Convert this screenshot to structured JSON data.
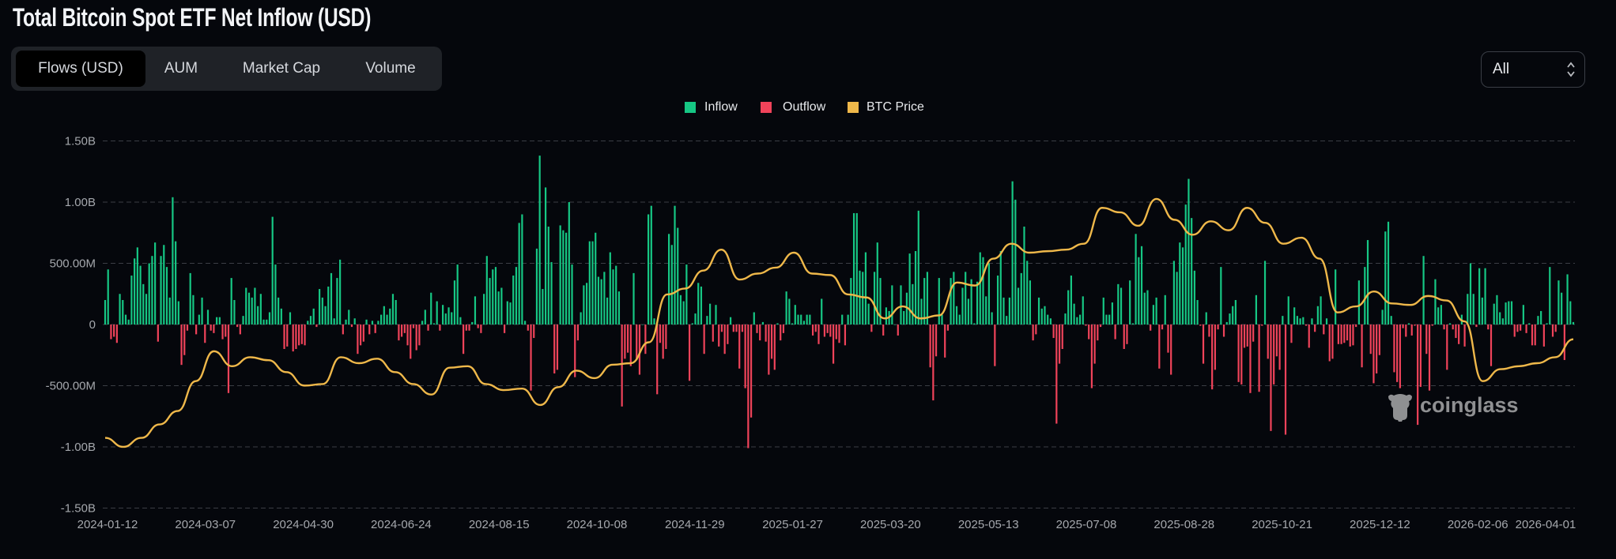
{
  "header": {
    "title": "Total Bitcoin Spot ETF Net Inflow (USD)"
  },
  "tabs": [
    {
      "label": "Flows (USD)",
      "active": true
    },
    {
      "label": "AUM",
      "active": false
    },
    {
      "label": "Market Cap",
      "active": false
    },
    {
      "label": "Volume",
      "active": false
    }
  ],
  "range_select": {
    "value": "All"
  },
  "watermark": "coinglass",
  "colors": {
    "inflow": "#16c784",
    "outflow": "#f0435a",
    "price": "#efb84a",
    "background": "#05070c"
  },
  "chart_data": {
    "type": "bar",
    "title": "Total Bitcoin Spot ETF Net Inflow (USD)",
    "legend": [
      {
        "name": "Inflow",
        "color": "#16c784"
      },
      {
        "name": "Outflow",
        "color": "#f0435a"
      },
      {
        "name": "BTC Price",
        "color": "#efb84a"
      }
    ],
    "legend_position": "top-center",
    "y_ticks": [
      "1.50B",
      "1.00B",
      "500.00M",
      "0",
      "-500.00M",
      "-1.00B",
      "-1.50B"
    ],
    "y_tick_values": [
      1500,
      1000,
      500,
      0,
      -500,
      -1000,
      -1500
    ],
    "ylim": [
      -1500,
      1500
    ],
    "y_unit": "M USD",
    "x_ticks": [
      "2024-01-12",
      "2024-03-07",
      "2024-04-30",
      "2024-06-24",
      "2024-08-15",
      "2024-10-08",
      "2024-11-29",
      "2025-01-27",
      "2025-03-20",
      "2025-05-13",
      "2025-07-08",
      "2025-08-28",
      "2025-10-21",
      "2025-12-12",
      "2026-02-06",
      "2026-04-01"
    ],
    "grid": true,
    "net_flows_musd": [
      200,
      450,
      -120,
      -100,
      -150,
      250,
      200,
      80,
      40,
      400,
      540,
      630,
      480,
      330,
      250,
      500,
      560,
      670,
      -140,
      560,
      650,
      470,
      220,
      1040,
      680,
      190,
      -330,
      -250,
      -50,
      420,
      240,
      -80,
      80,
      220,
      -150,
      120,
      -50,
      -70,
      60,
      60,
      -120,
      -100,
      -560,
      380,
      200,
      -20,
      -80,
      70,
      300,
      260,
      220,
      300,
      150,
      250,
      40,
      40,
      100,
      880,
      490,
      220,
      130,
      -200,
      -180,
      100,
      -220,
      -200,
      -170,
      -160,
      -170,
      30,
      70,
      130,
      -20,
      290,
      220,
      150,
      310,
      420,
      50,
      380,
      530,
      -80,
      40,
      120,
      -20,
      50,
      -240,
      -170,
      -140,
      40,
      -80,
      30,
      -70,
      30,
      80,
      150,
      80,
      130,
      250,
      200,
      -130,
      -100,
      -70,
      -170,
      -280,
      -30,
      -210,
      -170,
      30,
      120,
      -50,
      260,
      10,
      190,
      -50,
      160,
      90,
      140,
      100,
      360,
      490,
      60,
      -240,
      -50,
      -50,
      20,
      230,
      -30,
      -70,
      250,
      560,
      380,
      450,
      470,
      270,
      300,
      -70,
      190,
      180,
      400,
      470,
      830,
      900,
      30,
      -50,
      -540,
      -110,
      620,
      1380,
      290,
      1120,
      800,
      510,
      -400,
      -370,
      810,
      770,
      750,
      1000,
      490,
      -430,
      -130,
      100,
      320,
      340,
      680,
      680,
      750,
      390,
      370,
      430,
      220,
      590,
      450,
      480,
      270,
      -670,
      -280,
      -230,
      -340,
      420,
      -290,
      -410,
      0,
      -240,
      900,
      970,
      50,
      -570,
      -150,
      -280,
      -200,
      740,
      650,
      970,
      790,
      240,
      190,
      490,
      -460,
      10,
      90,
      340,
      310,
      -240,
      70,
      170,
      -140,
      160,
      -180,
      -60,
      -240,
      -160,
      60,
      -60,
      -60,
      -360,
      -60,
      -520,
      -1010,
      -760,
      100,
      -70,
      -130,
      20,
      -140,
      -410,
      -280,
      -370,
      10,
      -130,
      -70,
      270,
      210,
      10,
      160,
      80,
      80,
      30,
      80,
      80,
      -90,
      -60,
      -160,
      210,
      -100,
      -70,
      -100,
      -320,
      -120,
      -150,
      80,
      -170,
      80,
      380,
      910,
      910,
      440,
      430,
      590,
      170,
      -60,
      430,
      670,
      380,
      -90,
      140,
      110,
      320,
      0,
      -90,
      320,
      110,
      260,
      580,
      330,
      600,
      930,
      210,
      380,
      430,
      -350,
      -620,
      -260,
      380,
      80,
      -270,
      -50,
      380,
      430,
      150,
      80,
      300,
      430,
      210,
      370,
      10,
      350,
      590,
      550,
      230,
      500,
      100,
      -340,
      400,
      600,
      220,
      70,
      220,
      1170,
      1020,
      300,
      420,
      800,
      520,
      360,
      -130,
      -80,
      220,
      130,
      150,
      80,
      50,
      -110,
      -810,
      -320,
      -200,
      90,
      280,
      400,
      170,
      60,
      80,
      230,
      -10,
      -120,
      -520,
      -320,
      -130,
      -20,
      220,
      80,
      80,
      180,
      -120,
      330,
      300,
      -200,
      -160,
      360,
      10,
      740,
      550,
      640,
      260,
      280,
      -50,
      160,
      220,
      -360,
      -40,
      240,
      -230,
      -410,
      520,
      430,
      670,
      630,
      980,
      1190,
      870,
      440,
      200,
      -10,
      -320,
      100,
      -100,
      -530,
      -370,
      -40,
      470,
      -100,
      20,
      90,
      150,
      200,
      -470,
      -490,
      -190,
      -180,
      -560,
      -140,
      240,
      -550,
      -10,
      520,
      -280,
      -870,
      -490,
      -260,
      -370,
      70,
      -900,
      230,
      -150,
      140,
      70,
      50,
      60,
      -10,
      -190,
      50,
      -60,
      150,
      230,
      -80,
      50,
      -300,
      -280,
      450,
      -160,
      -160,
      -150,
      -130,
      -180,
      -170,
      -20,
      360,
      -350,
      470,
      690,
      -240,
      -480,
      -400,
      -250,
      120,
      760,
      840,
      70,
      -390,
      -470,
      -520,
      -30,
      -100,
      10,
      -90,
      -10,
      -820,
      -510,
      560,
      -240,
      -540,
      -10,
      370,
      140,
      160,
      -40,
      -370,
      10,
      -40,
      -110,
      -160,
      80,
      -180,
      250,
      500,
      250,
      -20,
      460,
      220,
      460,
      -40,
      -340,
      170,
      240,
      100,
      50,
      180,
      190,
      190,
      -100,
      -60,
      -50,
      160,
      -70,
      10,
      -170,
      -170,
      70,
      110,
      -180,
      10,
      470,
      -100,
      -60,
      360,
      260,
      -290,
      410,
      190,
      20
    ],
    "btc_price_k": [
      43,
      40,
      43,
      47.5,
      52,
      62,
      72,
      67,
      70,
      69,
      65,
      60.5,
      61,
      70,
      68,
      69.5,
      65,
      61,
      57.5,
      66.5,
      67,
      61,
      59,
      59.5,
      54,
      60,
      65.5,
      63,
      67.5,
      68,
      75,
      91,
      93,
      99,
      106,
      96,
      98,
      100,
      105,
      98,
      97.5,
      91,
      90,
      83,
      87,
      83,
      84,
      95,
      94,
      103,
      108,
      105,
      105.5,
      106,
      108,
      120,
      118.5,
      114,
      123,
      116,
      111,
      115.5,
      112.5,
      120,
      115,
      108,
      110,
      103,
      85,
      87,
      92,
      88,
      87.5,
      90.5,
      89,
      82,
      62,
      66,
      67,
      68,
      70,
      76
    ],
    "btc_price_axis_k": [
      19.5,
      142.4
    ]
  }
}
